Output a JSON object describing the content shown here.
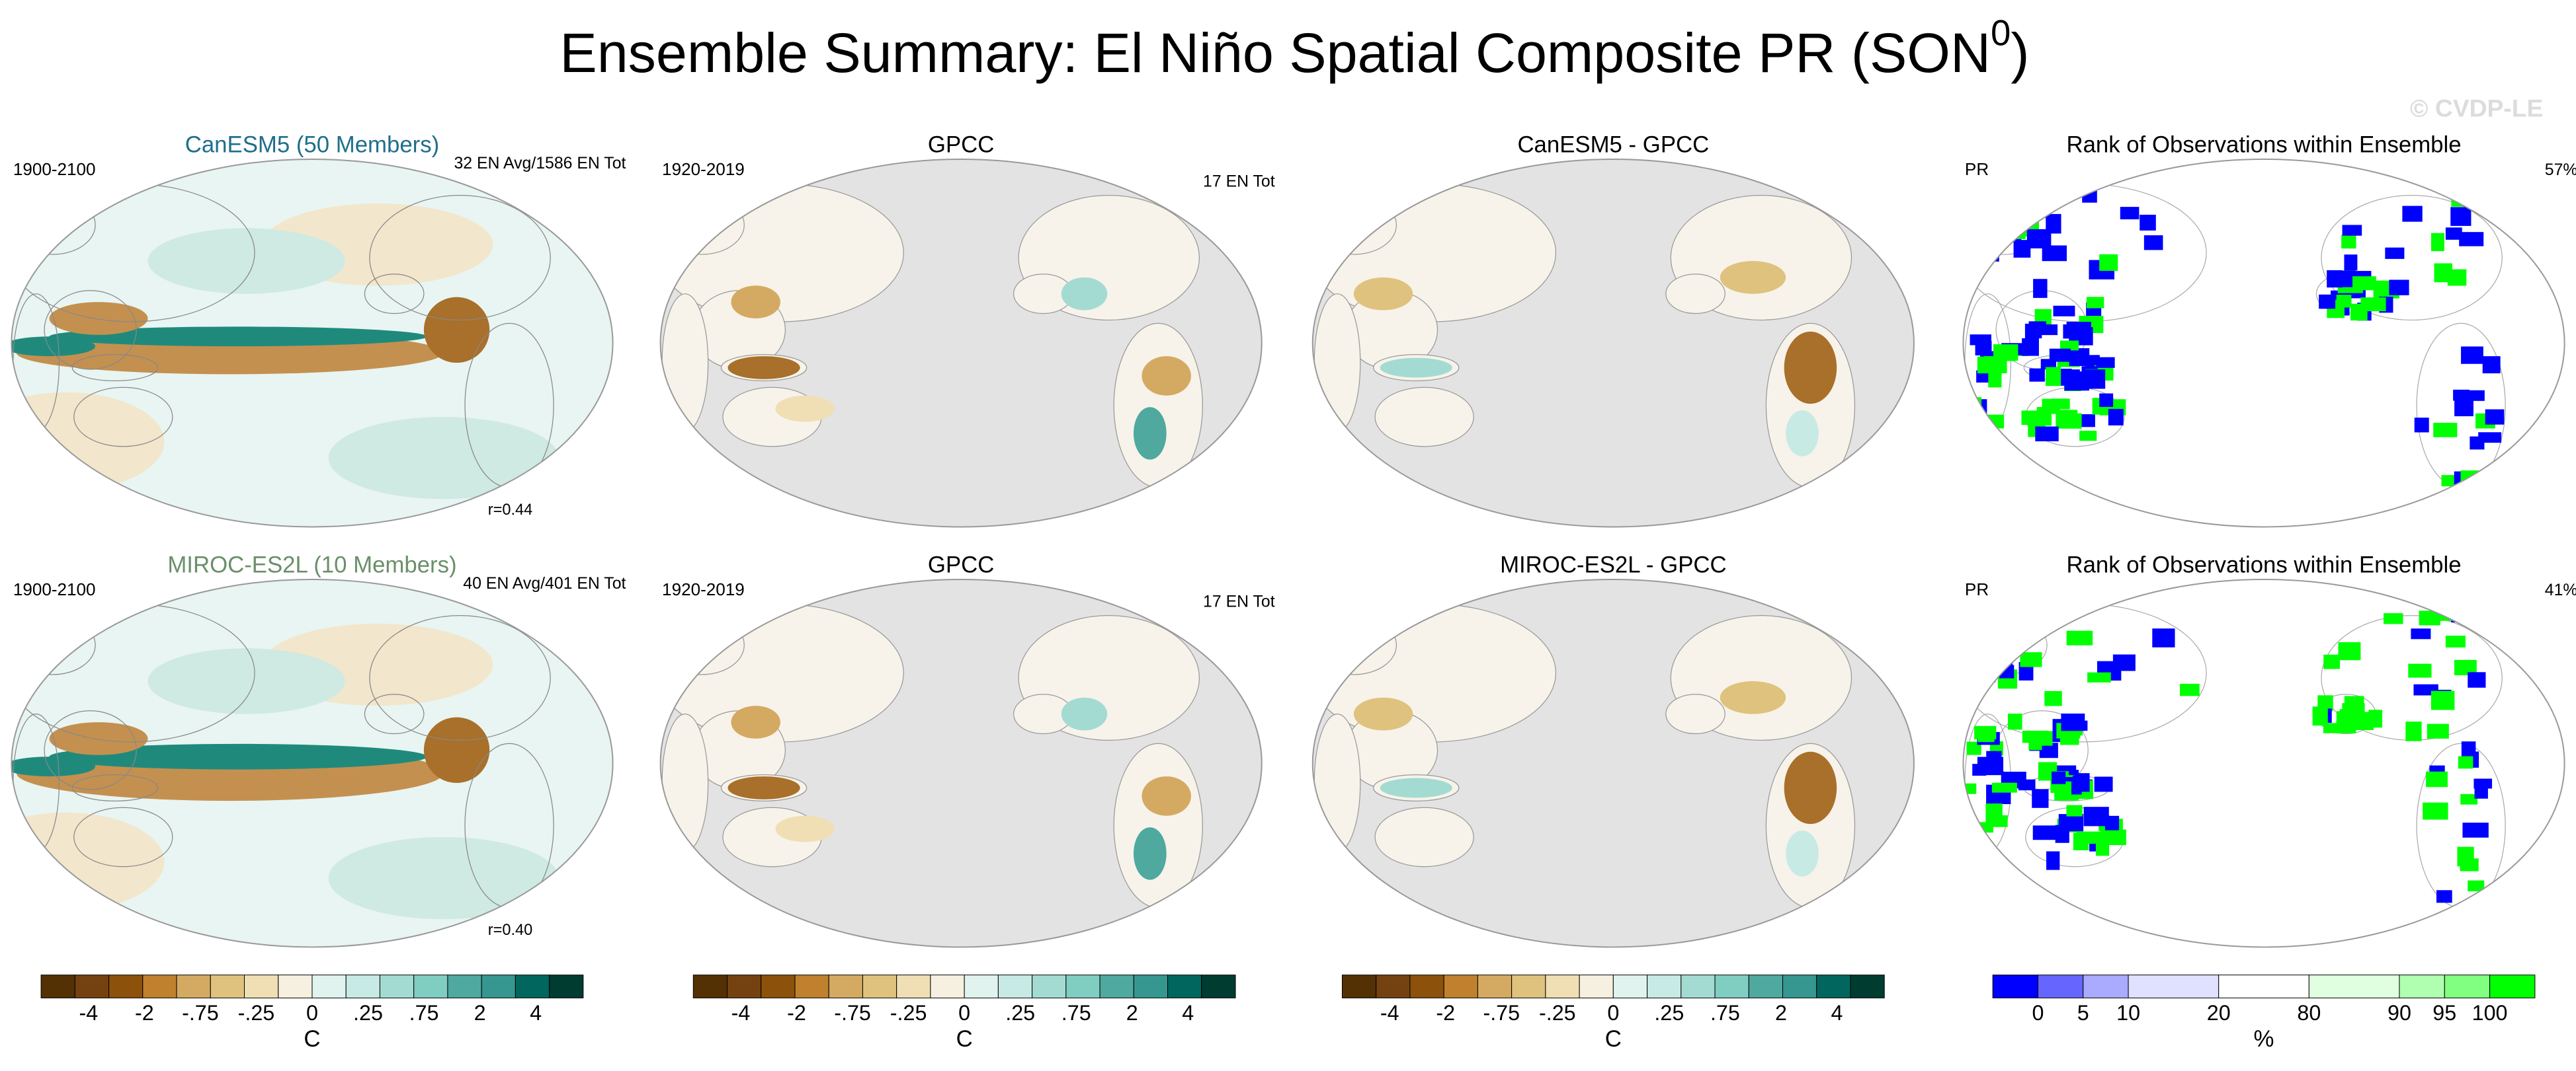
{
  "title": {
    "text": "Ensemble Summary: El Niño Spatial Composite PR (SON",
    "superscript": "0",
    "end": ")"
  },
  "watermark": "© CVDP-LE",
  "panels": [
    [
      {
        "title": "CanESM5 (50 Members)",
        "title_color": "#1f6e8c",
        "left": "1900-2100",
        "right": "32 EN Avg/1586 EN Tot",
        "bottom": "r=0.44"
      },
      {
        "title": "GPCC",
        "left": "1920-2019",
        "right": "17 EN Tot"
      },
      {
        "title": "CanESM5 - GPCC"
      },
      {
        "title": "Rank of Observations within Ensemble",
        "left": "PR",
        "right": "57%"
      }
    ],
    [
      {
        "title": "MIROC-ES2L (10 Members)",
        "title_color": "#6a8f6a",
        "left": "1900-2100",
        "right": "40 EN Avg/401 EN Tot",
        "bottom": "r=0.40"
      },
      {
        "title": "GPCC",
        "left": "1920-2019",
        "right": "17 EN Tot"
      },
      {
        "title": "MIROC-ES2L - GPCC"
      },
      {
        "title": "Rank of Observations within Ensemble",
        "left": "PR",
        "right": "41%"
      }
    ]
  ],
  "colorbars": [
    {
      "colors": [
        "#543005",
        "#744210",
        "#8c510a",
        "#bf812d",
        "#d4aa62",
        "#dfc27d",
        "#f0dfb5",
        "#f6f0e0",
        "#e0f3ef",
        "#c7eae5",
        "#a3dbd2",
        "#80cdc1",
        "#4fa99f",
        "#35978f",
        "#01665e",
        "#003c30"
      ],
      "labels": [
        "-4",
        "-2",
        "-.75",
        "-.25",
        "0",
        ".25",
        ".75",
        "2",
        "4"
      ],
      "unit": "C"
    },
    {
      "colors": [
        "#543005",
        "#744210",
        "#8c510a",
        "#bf812d",
        "#d4aa62",
        "#dfc27d",
        "#f0dfb5",
        "#f6f0e0",
        "#e0f3ef",
        "#c7eae5",
        "#a3dbd2",
        "#80cdc1",
        "#4fa99f",
        "#35978f",
        "#01665e",
        "#003c30"
      ],
      "labels": [
        "-4",
        "-2",
        "-.75",
        "-.25",
        "0",
        ".25",
        ".75",
        "2",
        "4"
      ],
      "unit": "C"
    },
    {
      "colors": [
        "#543005",
        "#744210",
        "#8c510a",
        "#bf812d",
        "#d4aa62",
        "#dfc27d",
        "#f0dfb5",
        "#f6f0e0",
        "#e0f3ef",
        "#c7eae5",
        "#a3dbd2",
        "#80cdc1",
        "#4fa99f",
        "#35978f",
        "#01665e",
        "#003c30"
      ],
      "labels": [
        "-4",
        "-2",
        "-.75",
        "-.25",
        "0",
        ".25",
        ".75",
        "2",
        "4"
      ],
      "unit": "C"
    },
    {
      "colors": [
        "#0000ff",
        "#6666ff",
        "#aaaaff",
        "#e0e0ff",
        "#ffffff",
        "#e0ffe0",
        "#b0ffb0",
        "#80ff80",
        "#00ff00"
      ],
      "labels": [
        "0",
        "5",
        "10",
        "20",
        "80",
        "90",
        "95",
        "100"
      ],
      "unit": "%"
    }
  ]
}
